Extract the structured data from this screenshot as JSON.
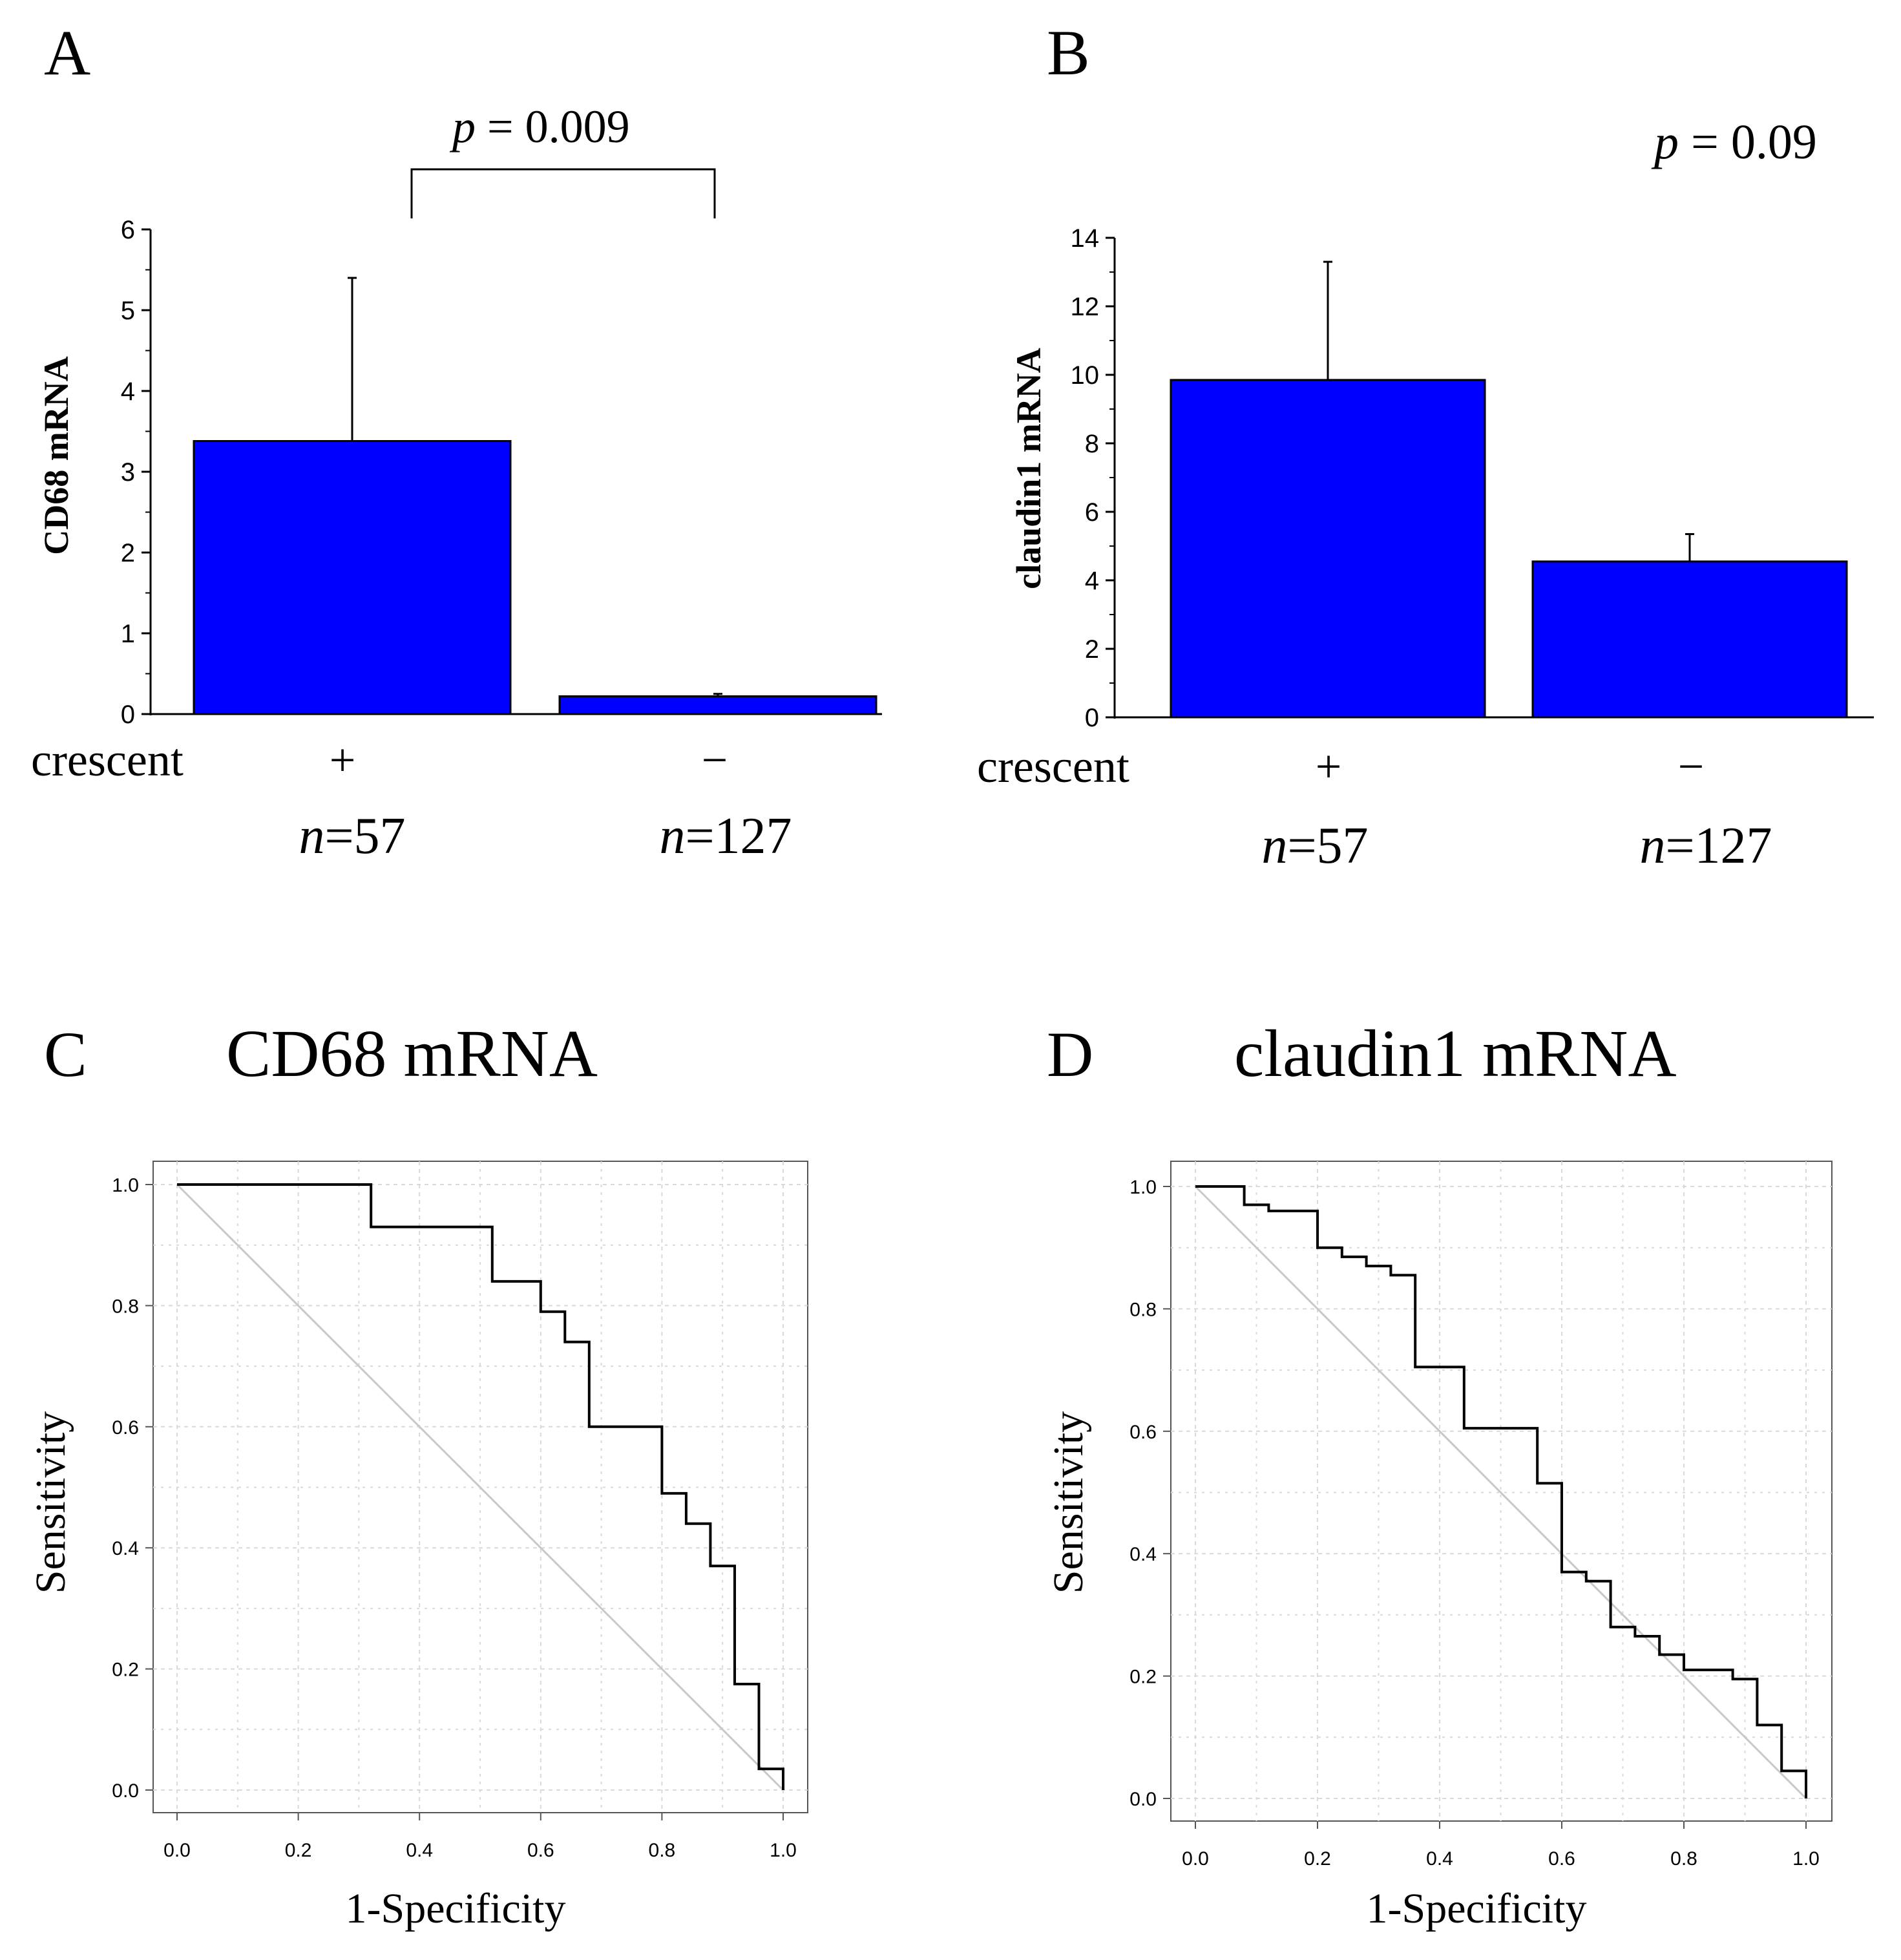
{
  "panels": {
    "A": {
      "letter": "A",
      "pvalue_prefix": "p",
      "pvalue_rest": " = 0.009"
    },
    "B": {
      "letter": "B",
      "pvalue_prefix": "p",
      "pvalue_rest": " = 0.09"
    },
    "C": {
      "letter": "C",
      "title": "CD68 mRNA"
    },
    "D": {
      "letter": "D",
      "title": "claudin1 mRNA"
    }
  },
  "colors": {
    "bar": "#0000ff",
    "line": "#000000",
    "diagonal": "#c8c8c8",
    "grid": "#d9d9d9"
  },
  "chart_data": [
    {
      "type": "bar",
      "panel": "A",
      "ylabel": "CD68 mRNA",
      "group_label": "crescent",
      "categories": [
        "+",
        "−"
      ],
      "n_labels": [
        {
          "n": "n",
          "rest": "=57"
        },
        {
          "n": "n",
          "rest": "=127"
        }
      ],
      "values": [
        3.38,
        0.22
      ],
      "errors": [
        2.02,
        0.03
      ],
      "ylim": [
        0,
        6
      ],
      "yticks": [
        0,
        1,
        2,
        3,
        4,
        5,
        6
      ],
      "significance": "p = 0.009"
    },
    {
      "type": "bar",
      "panel": "B",
      "ylabel": "claudin1 mRNA",
      "group_label": "crescent",
      "categories": [
        "+",
        "−"
      ],
      "n_labels": [
        {
          "n": "n",
          "rest": "=57"
        },
        {
          "n": "n",
          "rest": "=127"
        }
      ],
      "values": [
        9.85,
        4.55
      ],
      "errors": [
        3.45,
        0.8
      ],
      "ylim": [
        0,
        14
      ],
      "yticks": [
        0,
        2,
        4,
        6,
        8,
        10,
        12,
        14
      ],
      "significance": "p = 0.09"
    },
    {
      "type": "line",
      "panel": "C",
      "title": "CD68 mRNA",
      "xlabel": "1-Specificity",
      "ylabel": "Sensitivity",
      "xlim": [
        1.0,
        0.0
      ],
      "ylim": [
        0,
        1
      ],
      "xtick_labels": [
        "1.0",
        "0.8",
        "0.6",
        "0.4",
        "0.2",
        "0.0"
      ],
      "ytick_labels": [
        "0.0",
        "0.2",
        "0.4",
        "0.6",
        "0.8",
        "1.0"
      ],
      "grid": true,
      "x": [
        1.0,
        1.0,
        0.96,
        0.96,
        0.92,
        0.92,
        0.88,
        0.88,
        0.84,
        0.84,
        0.8,
        0.8,
        0.68,
        0.68,
        0.64,
        0.64,
        0.6,
        0.6,
        0.52,
        0.52,
        0.32,
        0.32,
        0.0
      ],
      "y": [
        0.0,
        0.035,
        0.035,
        0.175,
        0.175,
        0.37,
        0.37,
        0.44,
        0.44,
        0.49,
        0.49,
        0.6,
        0.6,
        0.74,
        0.74,
        0.79,
        0.79,
        0.84,
        0.84,
        0.93,
        0.93,
        1.0,
        1.0
      ]
    },
    {
      "type": "line",
      "panel": "D",
      "title": "claudin1 mRNA",
      "xlabel": "1-Specificity",
      "ylabel": "Sensitivity",
      "xlim": [
        1.0,
        0.0
      ],
      "ylim": [
        0,
        1
      ],
      "xtick_labels": [
        "1.0",
        "0.8",
        "0.6",
        "0.4",
        "0.2",
        "0.0"
      ],
      "ytick_labels": [
        "0.0",
        "0.2",
        "0.4",
        "0.6",
        "0.8",
        "1.0"
      ],
      "grid": true,
      "x": [
        1.0,
        1.0,
        0.96,
        0.96,
        0.92,
        0.92,
        0.88,
        0.88,
        0.8,
        0.8,
        0.76,
        0.76,
        0.72,
        0.72,
        0.68,
        0.68,
        0.64,
        0.64,
        0.6,
        0.6,
        0.56,
        0.56,
        0.44,
        0.44,
        0.36,
        0.36,
        0.32,
        0.32,
        0.28,
        0.28,
        0.24,
        0.24,
        0.2,
        0.2,
        0.12,
        0.12,
        0.08,
        0.08,
        0.0
      ],
      "y": [
        0.0,
        0.045,
        0.045,
        0.12,
        0.12,
        0.195,
        0.195,
        0.21,
        0.21,
        0.235,
        0.235,
        0.265,
        0.265,
        0.28,
        0.28,
        0.355,
        0.355,
        0.37,
        0.37,
        0.515,
        0.515,
        0.605,
        0.605,
        0.705,
        0.705,
        0.855,
        0.855,
        0.87,
        0.87,
        0.885,
        0.885,
        0.9,
        0.9,
        0.96,
        0.96,
        0.97,
        0.97,
        1.0,
        1.0
      ]
    }
  ]
}
